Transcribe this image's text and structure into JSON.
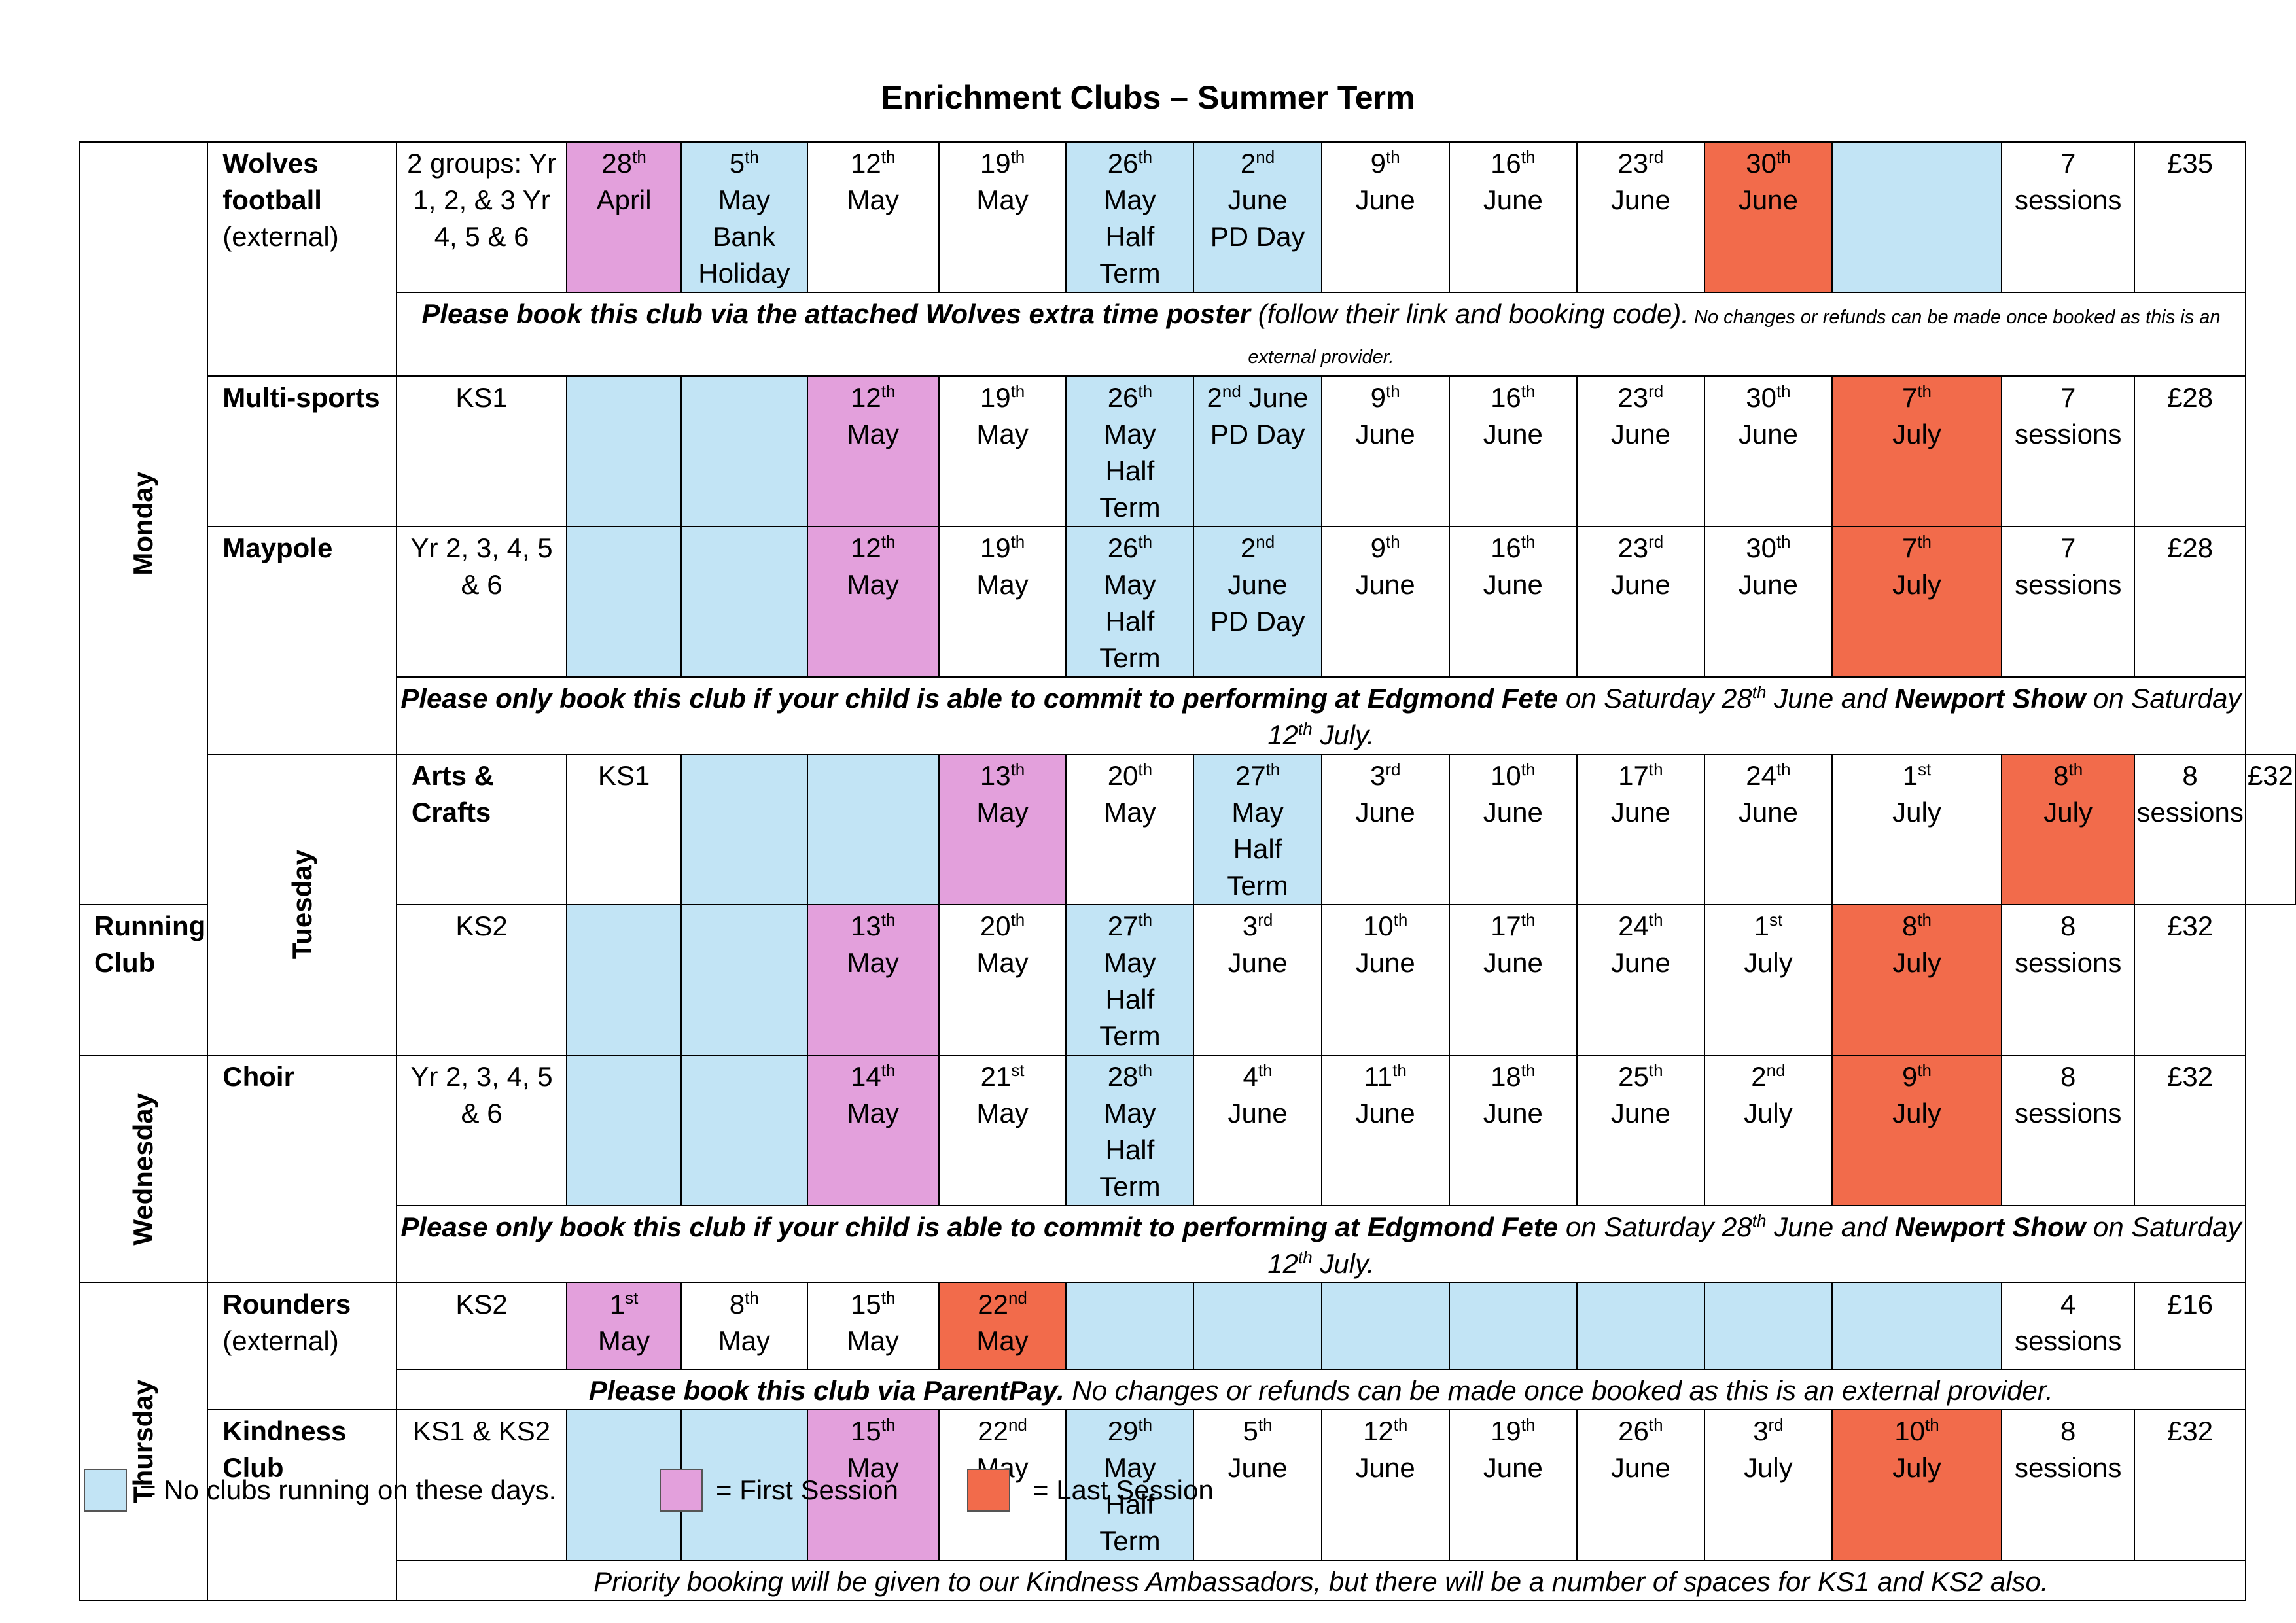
{
  "title": "Enrichment Clubs – Summer Term",
  "days": {
    "monday": "Monday",
    "tuesday": "Tuesday",
    "wednesday": "Wednesday",
    "thursday": "Thursday"
  },
  "clubs": [
    {
      "name": "Wolves football",
      "sub": "(external)",
      "groups": "2 groups: Yr 1, 2, & 3 Yr 4, 5 & 6",
      "sessions": "7 sessions",
      "price": "£35"
    },
    {
      "name": "Multi-sports",
      "sub": "",
      "groups": "KS1",
      "sessions": "7 sessions",
      "price": "£28"
    },
    {
      "name": "Maypole",
      "sub": "",
      "groups": "Yr 2, 3, 4, 5 & 6",
      "sessions": "7 sessions",
      "price": "£28"
    },
    {
      "name": "Arts & Crafts",
      "sub": "",
      "groups": "KS1",
      "sessions": "8 sessions",
      "price": "£32"
    },
    {
      "name": "Running Club",
      "sub": "",
      "groups": "KS2",
      "sessions": "8 sessions",
      "price": "£32"
    },
    {
      "name": "Choir",
      "sub": "",
      "groups": "Yr 2, 3, 4, 5 & 6",
      "sessions": "8 sessions",
      "price": "£32"
    },
    {
      "name": "Rounders",
      "sub": "(external)",
      "groups": "KS2",
      "sessions": "4 sessions",
      "price": "£16"
    },
    {
      "name": "Kindness Club",
      "sub": "",
      "groups": "KS1 & KS2",
      "sessions": "8 sessions",
      "price": "£32"
    }
  ],
  "notes": {
    "wolves": {
      "bold": "Please book this club via the attached Wolves extra time poster",
      "mid": " (follow their link and booking code).",
      "small": " No changes or refunds can be made once booked as this is an external provider."
    },
    "fete": {
      "b1": "Please only book this club if your child is able to commit to performing at Edgmond Fete",
      "t1": " on Saturday 28",
      "sup1": "th",
      "t2": " June and ",
      "b2": "Newport Show",
      "t3": " on Saturday 12",
      "sup2": "th",
      "t4": " July."
    },
    "rounders": {
      "bold": "Please book this club via ParentPay.",
      "rest": " No changes or refunds can be made once booked as this is an external provider."
    },
    "kindness": "Priority booking will be given to our Kindness Ambassadors, but there will be a number of spaces for KS1 and KS2 also."
  },
  "legend": [
    {
      "label": "= No clubs running on these days.",
      "color": "#c2e4f5"
    },
    {
      "label": "= First Session",
      "color": "#e3a0dc"
    },
    {
      "label": "= Last Session",
      "color": "#f26b4b"
    }
  ],
  "dates": {
    "wolves": [
      {
        "n": "28",
        "s": "th",
        "m": "April",
        "extra": [],
        "c": "pink"
      },
      {
        "n": "5",
        "s": "th",
        "m": "May",
        "extra": [
          "Bank",
          "Holiday"
        ],
        "c": "blue"
      },
      {
        "n": "12",
        "s": "th",
        "m": "May",
        "extra": [],
        "c": ""
      },
      {
        "n": "19",
        "s": "th",
        "m": "May",
        "extra": [],
        "c": ""
      },
      {
        "n": "26",
        "s": "th",
        "m": "May",
        "extra": [
          "Half",
          "Term"
        ],
        "c": "blue"
      },
      {
        "n": "2",
        "s": "nd",
        "m": "June",
        "extra": [
          "PD Day"
        ],
        "c": "blue"
      },
      {
        "n": "9",
        "s": "th",
        "m": "June",
        "extra": [],
        "c": ""
      },
      {
        "n": "16",
        "s": "th",
        "m": "June",
        "extra": [],
        "c": ""
      },
      {
        "n": "23",
        "s": "rd",
        "m": "June",
        "extra": [],
        "c": ""
      },
      {
        "n": "30",
        "s": "th",
        "m": "June",
        "extra": [],
        "c": "orange"
      },
      {
        "n": "",
        "s": "",
        "m": "",
        "extra": [],
        "c": "blue"
      }
    ],
    "multisports": [
      {
        "n": "",
        "s": "",
        "m": "",
        "extra": [],
        "c": "blue"
      },
      {
        "n": "",
        "s": "",
        "m": "",
        "extra": [],
        "c": "blue"
      },
      {
        "n": "12",
        "s": "th",
        "m": "May",
        "extra": [],
        "c": "pink"
      },
      {
        "n": "19",
        "s": "th",
        "m": "May",
        "extra": [],
        "c": ""
      },
      {
        "n": "26",
        "s": "th",
        "m": "May",
        "extra": [
          "Half",
          "Term"
        ],
        "c": "blue"
      },
      {
        "n": "2",
        "s": "nd",
        "m": " June",
        "extra": [
          "PD Day"
        ],
        "c": "blue",
        "inline": true
      },
      {
        "n": "9",
        "s": "th",
        "m": "June",
        "extra": [],
        "c": ""
      },
      {
        "n": "16",
        "s": "th",
        "m": "June",
        "extra": [],
        "c": ""
      },
      {
        "n": "23",
        "s": "rd",
        "m": "June",
        "extra": [],
        "c": ""
      },
      {
        "n": "30",
        "s": "th",
        "m": "June",
        "extra": [],
        "c": ""
      },
      {
        "n": "7",
        "s": "th",
        "m": "July",
        "extra": [],
        "c": "orange"
      }
    ],
    "maypole": [
      {
        "n": "",
        "s": "",
        "m": "",
        "extra": [],
        "c": "blue"
      },
      {
        "n": "",
        "s": "",
        "m": "",
        "extra": [],
        "c": "blue"
      },
      {
        "n": "12",
        "s": "th",
        "m": "May",
        "extra": [],
        "c": "pink"
      },
      {
        "n": "19",
        "s": "th",
        "m": "May",
        "extra": [],
        "c": ""
      },
      {
        "n": "26",
        "s": "th",
        "m": "May",
        "extra": [
          "Half",
          "Term"
        ],
        "c": "blue"
      },
      {
        "n": "2",
        "s": "nd",
        "m": "June",
        "extra": [
          "PD Day"
        ],
        "c": "blue"
      },
      {
        "n": "9",
        "s": "th",
        "m": "June",
        "extra": [],
        "c": ""
      },
      {
        "n": "16",
        "s": "th",
        "m": "June",
        "extra": [],
        "c": ""
      },
      {
        "n": "23",
        "s": "rd",
        "m": "June",
        "extra": [],
        "c": ""
      },
      {
        "n": "30",
        "s": "th",
        "m": "June",
        "extra": [],
        "c": ""
      },
      {
        "n": "7",
        "s": "th",
        "m": "July",
        "extra": [],
        "c": "orange"
      }
    ],
    "arts": [
      {
        "n": "",
        "s": "",
        "m": "",
        "extra": [],
        "c": "blue"
      },
      {
        "n": "",
        "s": "",
        "m": "",
        "extra": [],
        "c": "blue"
      },
      {
        "n": "13",
        "s": "th",
        "m": "May",
        "extra": [],
        "c": "pink"
      },
      {
        "n": "20",
        "s": "th",
        "m": "May",
        "extra": [],
        "c": ""
      },
      {
        "n": "27",
        "s": "th",
        "m": "May",
        "extra": [
          "Half",
          "Term"
        ],
        "c": "blue"
      },
      {
        "n": "3",
        "s": "rd",
        "m": "June",
        "extra": [],
        "c": ""
      },
      {
        "n": "10",
        "s": "th",
        "m": "June",
        "extra": [],
        "c": ""
      },
      {
        "n": "17",
        "s": "th",
        "m": "June",
        "extra": [],
        "c": ""
      },
      {
        "n": "24",
        "s": "th",
        "m": "June",
        "extra": [],
        "c": ""
      },
      {
        "n": "1",
        "s": "st",
        "m": "July",
        "extra": [],
        "c": ""
      },
      {
        "n": "8",
        "s": "th",
        "m": "July",
        "extra": [],
        "c": "orange"
      }
    ],
    "running": [
      {
        "n": "",
        "s": "",
        "m": "",
        "extra": [],
        "c": "blue"
      },
      {
        "n": "",
        "s": "",
        "m": "",
        "extra": [],
        "c": "blue"
      },
      {
        "n": "13",
        "s": "th",
        "m": "May",
        "extra": [],
        "c": "pink"
      },
      {
        "n": "20",
        "s": "th",
        "m": "May",
        "extra": [],
        "c": ""
      },
      {
        "n": "27",
        "s": "th",
        "m": "May",
        "extra": [
          "Half",
          "Term"
        ],
        "c": "blue"
      },
      {
        "n": "3",
        "s": "rd",
        "m": "June",
        "extra": [],
        "c": ""
      },
      {
        "n": "10",
        "s": "th",
        "m": "June",
        "extra": [],
        "c": ""
      },
      {
        "n": "17",
        "s": "th",
        "m": "June",
        "extra": [],
        "c": ""
      },
      {
        "n": "24",
        "s": "th",
        "m": "June",
        "extra": [],
        "c": ""
      },
      {
        "n": "1",
        "s": "st",
        "m": "July",
        "extra": [],
        "c": ""
      },
      {
        "n": "8",
        "s": "th",
        "m": "July",
        "extra": [],
        "c": "orange"
      }
    ],
    "choir": [
      {
        "n": "",
        "s": "",
        "m": "",
        "extra": [],
        "c": "blue"
      },
      {
        "n": "",
        "s": "",
        "m": "",
        "extra": [],
        "c": "blue"
      },
      {
        "n": "14",
        "s": "th",
        "m": "May",
        "extra": [],
        "c": "pink"
      },
      {
        "n": "21",
        "s": "st",
        "m": "May",
        "extra": [],
        "c": ""
      },
      {
        "n": "28",
        "s": "th",
        "m": "May",
        "extra": [
          "Half",
          "Term"
        ],
        "c": "blue"
      },
      {
        "n": "4",
        "s": "th",
        "m": "June",
        "extra": [],
        "c": ""
      },
      {
        "n": "11",
        "s": "th",
        "m": "June",
        "extra": [],
        "c": ""
      },
      {
        "n": "18",
        "s": "th",
        "m": "June",
        "extra": [],
        "c": ""
      },
      {
        "n": "25",
        "s": "th",
        "m": "June",
        "extra": [],
        "c": ""
      },
      {
        "n": "2",
        "s": "nd",
        "m": "July",
        "extra": [],
        "c": ""
      },
      {
        "n": "9",
        "s": "th",
        "m": "July",
        "extra": [],
        "c": "orange"
      }
    ],
    "rounders": [
      {
        "n": "1",
        "s": "st",
        "m": "May",
        "extra": [],
        "c": "pink"
      },
      {
        "n": "8",
        "s": "th",
        "m": "May",
        "extra": [],
        "c": ""
      },
      {
        "n": "15",
        "s": "th",
        "m": "May",
        "extra": [],
        "c": ""
      },
      {
        "n": "22",
        "s": "nd",
        "m": "May",
        "extra": [],
        "c": "orange"
      },
      {
        "n": "",
        "s": "",
        "m": "",
        "extra": [],
        "c": "blue"
      },
      {
        "n": "",
        "s": "",
        "m": "",
        "extra": [],
        "c": "blue"
      },
      {
        "n": "",
        "s": "",
        "m": "",
        "extra": [],
        "c": "blue"
      },
      {
        "n": "",
        "s": "",
        "m": "",
        "extra": [],
        "c": "blue"
      },
      {
        "n": "",
        "s": "",
        "m": "",
        "extra": [],
        "c": "blue"
      },
      {
        "n": "",
        "s": "",
        "m": "",
        "extra": [],
        "c": "blue"
      },
      {
        "n": "",
        "s": "",
        "m": "",
        "extra": [],
        "c": "blue"
      }
    ],
    "kindness": [
      {
        "n": "",
        "s": "",
        "m": "",
        "extra": [],
        "c": "blue"
      },
      {
        "n": "",
        "s": "",
        "m": "",
        "extra": [],
        "c": "blue"
      },
      {
        "n": "15",
        "s": "th",
        "m": "May",
        "extra": [],
        "c": "pink"
      },
      {
        "n": "22",
        "s": "nd",
        "m": "May",
        "extra": [],
        "c": ""
      },
      {
        "n": "29",
        "s": "th",
        "m": "May",
        "extra": [
          "Half",
          "Term"
        ],
        "c": "blue"
      },
      {
        "n": "5",
        "s": "th",
        "m": "June",
        "extra": [],
        "c": ""
      },
      {
        "n": "12",
        "s": "th",
        "m": "June",
        "extra": [],
        "c": ""
      },
      {
        "n": "19",
        "s": "th",
        "m": "June",
        "extra": [],
        "c": ""
      },
      {
        "n": "26",
        "s": "th",
        "m": "June",
        "extra": [],
        "c": ""
      },
      {
        "n": "3",
        "s": "rd",
        "m": "July",
        "extra": [],
        "c": ""
      },
      {
        "n": "10",
        "s": "th",
        "m": "July",
        "extra": [],
        "c": "orange"
      }
    ]
  }
}
